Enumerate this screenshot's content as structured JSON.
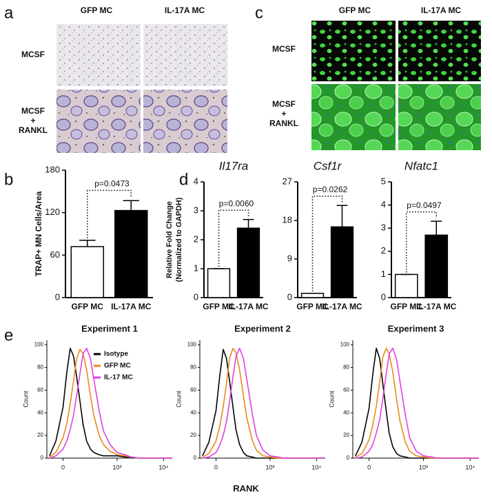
{
  "panels": [
    "a",
    "b",
    "c",
    "d",
    "e"
  ],
  "micrographs": [
    {
      "columns": [
        "GFP MC",
        "IL-17A MC"
      ],
      "rows": [
        "MCSF",
        [
          "MCSF",
          "+",
          "RANKL"
        ]
      ]
    },
    {
      "columns": [
        "GFP MC",
        "IL-17A MC"
      ],
      "rows": [
        "MCSF",
        [
          "MCSF",
          "+",
          "RANKL"
        ]
      ]
    }
  ],
  "flow_xlabel": "RANK",
  "chart_data": [
    {
      "type": "bar",
      "ylabel": "TRAP+ MN  Cells/Area",
      "categories": [
        "GFP MC",
        "IL-17A MC"
      ],
      "values": [
        72,
        123
      ],
      "errors": [
        9,
        14
      ],
      "colors": [
        "#ffffff",
        "#000000"
      ],
      "ylim": [
        0,
        180
      ],
      "yticks": [
        0,
        60,
        120,
        180
      ],
      "annotation": "p=0.0473"
    },
    {
      "type": "bar",
      "title": "Il17ra",
      "ylabel": [
        "Relative Fold Change",
        "(Normalized to GAPDH)"
      ],
      "categories": [
        "GFP MC",
        "IL-17A MC"
      ],
      "values": [
        1,
        2.4
      ],
      "errors": [
        0,
        0.3
      ],
      "colors": [
        "#ffffff",
        "#000000"
      ],
      "ylim": [
        0,
        4
      ],
      "yticks": [
        0,
        1,
        2,
        3,
        4
      ],
      "annotation": "p=0.0060"
    },
    {
      "type": "bar",
      "title": "Csf1r",
      "categories": [
        "GFP MC",
        "IL-17A MC"
      ],
      "values": [
        1,
        16.5
      ],
      "errors": [
        0,
        5
      ],
      "colors": [
        "#ffffff",
        "#000000"
      ],
      "ylim": [
        0,
        27
      ],
      "yticks": [
        0,
        9,
        18,
        27
      ],
      "annotation": "p=0.0262"
    },
    {
      "type": "bar",
      "title": "Nfatc1",
      "categories": [
        "GFP MC",
        "IL-17A MC"
      ],
      "values": [
        1,
        2.7
      ],
      "errors": [
        0,
        0.6
      ],
      "colors": [
        "#ffffff",
        "#000000"
      ],
      "ylim": [
        0,
        5
      ],
      "yticks": [
        0,
        1,
        2,
        3,
        4,
        5
      ],
      "annotation": "p=0.0497"
    },
    {
      "type": "line",
      "title": "Experiment 1",
      "ylabel": "Count",
      "x": [
        -100,
        -50,
        0,
        25,
        50,
        75,
        100,
        130,
        160,
        200,
        250,
        300,
        400,
        500,
        700,
        1000,
        1500,
        2000,
        3000,
        5000,
        10000,
        15000
      ],
      "series": [
        {
          "name": "Isotype",
          "color": "#000000",
          "values": [
            2,
            15,
            45,
            75,
            97,
            90,
            72,
            50,
            30,
            15,
            8,
            5,
            3,
            2,
            2,
            2,
            1,
            1,
            0,
            0,
            0,
            0
          ]
        },
        {
          "name": "GFP MC",
          "color": "#e8891a",
          "values": [
            1,
            5,
            18,
            30,
            48,
            68,
            88,
            96,
            92,
            78,
            55,
            38,
            20,
            12,
            6,
            3,
            2,
            1,
            0,
            0,
            0,
            0
          ]
        },
        {
          "name": "IL-17 MC",
          "color": "#e040e0",
          "values": [
            0,
            2,
            8,
            15,
            25,
            38,
            55,
            75,
            92,
            97,
            88,
            70,
            42,
            24,
            12,
            5,
            3,
            1,
            0,
            0,
            0,
            0
          ]
        }
      ],
      "xlim": [
        -123,
        15400
      ],
      "xticks": [
        0,
        {
          "value": 1000,
          "label": "10³"
        },
        {
          "value": 10000,
          "label": "10⁴"
        }
      ],
      "ylim": [
        0,
        104
      ],
      "yticks": [
        0,
        20,
        40,
        60,
        80,
        100
      ]
    },
    {
      "type": "line",
      "title": "Experiment 2",
      "ylabel": "Count",
      "x": [
        -100,
        -50,
        0,
        25,
        50,
        75,
        100,
        130,
        160,
        200,
        250,
        300,
        400,
        500,
        700,
        1000,
        1500,
        2000,
        3000,
        5000,
        10000,
        15000
      ],
      "series": [
        {
          "color": "#000000",
          "values": [
            2,
            14,
            42,
            72,
            96,
            88,
            68,
            45,
            25,
            12,
            5,
            2,
            1,
            0,
            0,
            0,
            0,
            0,
            0,
            0,
            0,
            0
          ]
        },
        {
          "color": "#e8891a",
          "values": [
            1,
            4,
            15,
            28,
            45,
            66,
            88,
            97,
            93,
            78,
            55,
            36,
            16,
            7,
            2,
            1,
            0,
            0,
            0,
            0,
            0,
            0
          ]
        },
        {
          "color": "#e040e0",
          "values": [
            0,
            1,
            5,
            11,
            20,
            32,
            50,
            72,
            90,
            97,
            88,
            70,
            40,
            20,
            7,
            2,
            1,
            0,
            0,
            0,
            0,
            0
          ]
        }
      ],
      "xlim": [
        -123,
        15400
      ],
      "xticks": [
        0,
        {
          "value": 1000,
          "label": "10³"
        },
        {
          "value": 10000,
          "label": "10⁴"
        }
      ],
      "ylim": [
        0,
        104
      ],
      "yticks": [
        0,
        20,
        40,
        60,
        80,
        100
      ]
    },
    {
      "type": "line",
      "title": "Experiment 3",
      "ylabel": "Count",
      "x": [
        -100,
        -50,
        0,
        25,
        50,
        75,
        100,
        130,
        160,
        200,
        250,
        300,
        400,
        500,
        700,
        1000,
        1500,
        2000,
        3000,
        5000,
        10000,
        15000
      ],
      "series": [
        {
          "color": "#000000",
          "values": [
            2,
            14,
            44,
            74,
            97,
            88,
            66,
            42,
            22,
            10,
            4,
            2,
            1,
            0,
            0,
            0,
            0,
            0,
            0,
            0,
            0,
            0
          ]
        },
        {
          "color": "#e8891a",
          "values": [
            1,
            4,
            16,
            29,
            46,
            67,
            89,
            97,
            92,
            76,
            52,
            33,
            14,
            6,
            2,
            1,
            0,
            0,
            0,
            0,
            0,
            0
          ]
        },
        {
          "color": "#e040e0",
          "values": [
            0,
            1,
            6,
            12,
            22,
            34,
            52,
            74,
            92,
            97,
            87,
            68,
            38,
            18,
            6,
            2,
            1,
            0,
            0,
            0,
            0,
            0
          ]
        }
      ],
      "xlim": [
        -123,
        15400
      ],
      "xticks": [
        0,
        {
          "value": 1000,
          "label": "10³"
        },
        {
          "value": 10000,
          "label": "10⁴"
        }
      ],
      "ylim": [
        0,
        104
      ],
      "yticks": [
        0,
        20,
        40,
        60,
        80,
        100
      ]
    }
  ]
}
